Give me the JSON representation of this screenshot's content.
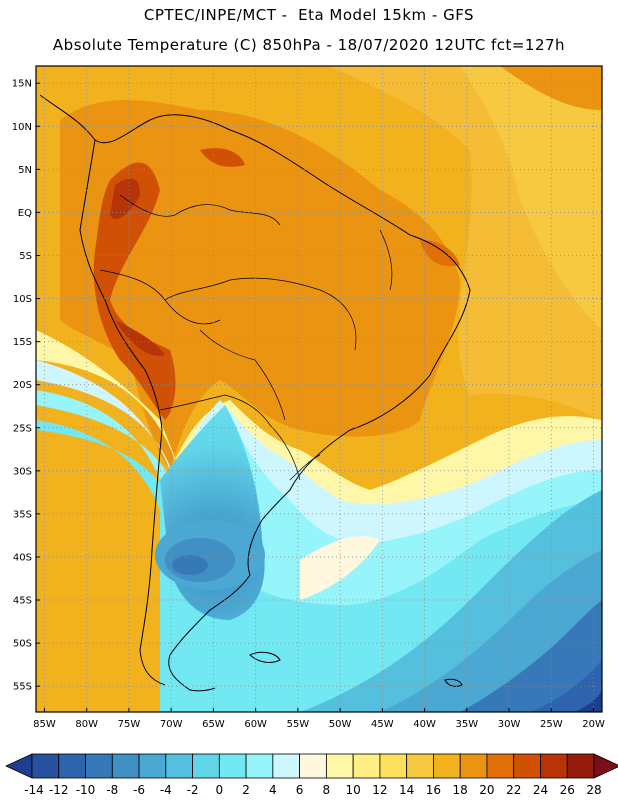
{
  "header": {
    "line1": "CPTEC/INPE/MCT -  Eta Model 15km - GFS",
    "line2": "Absolute Temperature (C) 850hPa - 18/07/2020 12UTC fct=127h"
  },
  "map": {
    "lat_labels": [
      "15N",
      "10N",
      "5N",
      "EQ",
      "5S",
      "10S",
      "15S",
      "20S",
      "25S",
      "30S",
      "35S",
      "40S",
      "45S",
      "50S",
      "55S"
    ],
    "lon_labels": [
      "85W",
      "80W",
      "75W",
      "70W",
      "65W",
      "60W",
      "55W",
      "50W",
      "45W",
      "40W",
      "35W",
      "30W",
      "25W",
      "20W"
    ],
    "lon_range": [
      -86,
      -19
    ],
    "lat_range": [
      -58,
      17
    ],
    "grid": true
  },
  "colorbar": {
    "labels": [
      "-14",
      "-12",
      "-10",
      "-8",
      "-6",
      "-4",
      "-2",
      "0",
      "2",
      "4",
      "6",
      "8",
      "10",
      "12",
      "14",
      "16",
      "18",
      "20",
      "22",
      "24",
      "26",
      "28"
    ],
    "colors": [
      "#1d3f8e",
      "#25519f",
      "#2e63ad",
      "#3778b9",
      "#4090c6",
      "#4aa8d2",
      "#55c0de",
      "#62d6e9",
      "#72e8f3",
      "#95f5fb",
      "#cdf6ff",
      "#fff8de",
      "#fff7a8",
      "#ffef84",
      "#fde15c",
      "#f7c940",
      "#f2b21d",
      "#eb9411",
      "#e26e07",
      "#d05106",
      "#b73408",
      "#961c0e",
      "#7a0f1a"
    ]
  }
}
